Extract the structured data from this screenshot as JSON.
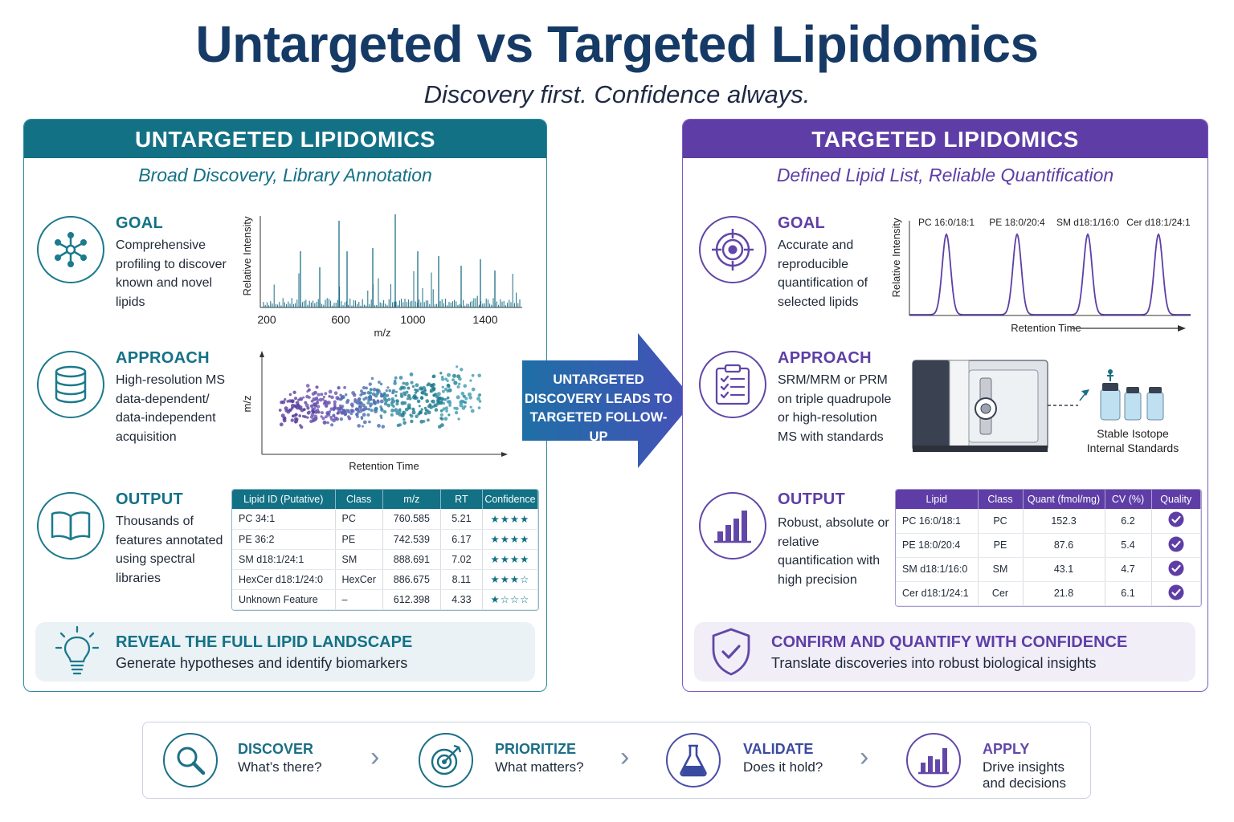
{
  "header": {
    "title": "Untargeted vs Targeted Lipidomics",
    "subtitle": "Discovery first.  Confidence always."
  },
  "colors": {
    "teal": "#137186",
    "purple": "#5e3ea6",
    "navy": "#163a66"
  },
  "untargeted": {
    "heading": "UNTARGETED LIPIDOMICS",
    "tagline": "Broad Discovery, Library Annotation",
    "goal": {
      "label": "GOAL",
      "text": "Comprehensive profiling to discover known and novel lipids",
      "icon": "network-icon"
    },
    "approach": {
      "label": "APPROACH",
      "text": "High-resolution MS data-dependent/ data-independent acquisition",
      "icon": "database-icon"
    },
    "output": {
      "label": "OUTPUT",
      "text": "Thousands of features annotated using spectral libraries",
      "icon": "book-icon"
    },
    "spectrum": {
      "ylabel": "Relative Intensity",
      "xlabel": "m/z",
      "ticks": [
        "200",
        "600",
        "1000",
        "1400"
      ]
    },
    "scatter": {
      "ylabel": "m/z",
      "xlabel": "Retention Time"
    },
    "table": {
      "headers": [
        "Lipid ID (Putative)",
        "Class",
        "m/z",
        "RT",
        "Confidence"
      ],
      "rows": [
        {
          "id": "PC 34:1",
          "class": "PC",
          "mz": "760.585",
          "rt": "5.21",
          "stars": 4
        },
        {
          "id": "PE 36:2",
          "class": "PE",
          "mz": "742.539",
          "rt": "6.17",
          "stars": 4
        },
        {
          "id": "SM d18:1/24:1",
          "class": "SM",
          "mz": "888.691",
          "rt": "7.02",
          "stars": 4
        },
        {
          "id": "HexCer d18:1/24:0",
          "class": "HexCer",
          "mz": "886.675",
          "rt": "8.11",
          "stars": 3
        },
        {
          "id": "Unknown Feature",
          "class": "–",
          "mz": "612.398",
          "rt": "4.33",
          "stars": 1
        }
      ]
    },
    "callout": {
      "heading": "REVEAL THE FULL LIPID LANDSCAPE",
      "text": "Generate hypotheses and identify biomarkers",
      "icon": "lightbulb-icon"
    }
  },
  "arrow": {
    "text": "UNTARGETED DISCOVERY LEADS TO TARGETED FOLLOW-UP"
  },
  "targeted": {
    "heading": "TARGETED LIPIDOMICS",
    "tagline": "Defined Lipid List, Reliable Quantification",
    "goal": {
      "label": "GOAL",
      "text": "Accurate and reproducible quantification of selected lipids",
      "icon": "target-icon"
    },
    "approach": {
      "label": "APPROACH",
      "text": "SRM/MRM or PRM on triple quadrupole or high-resolution MS with standards",
      "icon": "checklist-icon"
    },
    "output": {
      "label": "OUTPUT",
      "text": "Robust, absolute or relative quantification with high precision",
      "icon": "bar-chart-icon"
    },
    "chromatogram": {
      "ylabel": "Relative Intensity",
      "xlabel": "Retention Time",
      "peaks": [
        "PC 16:0/18:1",
        "PE 18:0/20:4",
        "SM d18:1/16:0",
        "Cer d18:1/24:1"
      ]
    },
    "instrument": {
      "label_line1": "Stable Isotope",
      "label_line2": "Internal Standards"
    },
    "table": {
      "headers": [
        "Lipid",
        "Class",
        "Quant (fmol/mg)",
        "CV (%)",
        "Quality"
      ],
      "rows": [
        {
          "lipid": "PC 16:0/18:1",
          "class": "PC",
          "quant": "152.3",
          "cv": "6.2"
        },
        {
          "lipid": "PE 18:0/20:4",
          "class": "PE",
          "quant": "87.6",
          "cv": "5.4"
        },
        {
          "lipid": "SM d18:1/16:0",
          "class": "SM",
          "quant": "43.1",
          "cv": "4.7"
        },
        {
          "lipid": "Cer d18:1/24:1",
          "class": "Cer",
          "quant": "21.8",
          "cv": "6.1"
        }
      ]
    },
    "callout": {
      "heading": "CONFIRM AND QUANTIFY WITH CONFIDENCE",
      "text": "Translate discoveries into robust biological insights",
      "icon": "shield-check-icon"
    }
  },
  "flow": [
    {
      "label": "DISCOVER",
      "text1": "What’s there?",
      "text2": "",
      "icon": "magnifier-icon"
    },
    {
      "label": "PRIORITIZE",
      "text1": "What matters?",
      "text2": "",
      "icon": "target-arrow-icon"
    },
    {
      "label": "VALIDATE",
      "text1": "Does it hold?",
      "text2": "",
      "icon": "flask-icon"
    },
    {
      "label": "APPLY",
      "text1": "Drive insights",
      "text2": "and decisions",
      "icon": "bar-chart-icon"
    }
  ]
}
